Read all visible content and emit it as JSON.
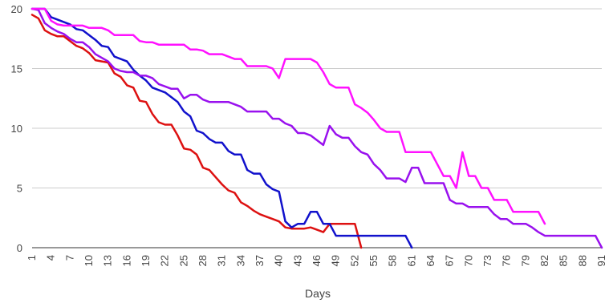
{
  "chart_data": {
    "type": "line",
    "title": "",
    "xlabel": "Days",
    "ylabel": "",
    "xlim": [
      1,
      91
    ],
    "ylim": [
      0,
      20
    ],
    "y_ticks": [
      "0",
      "5",
      "10",
      "15",
      "20"
    ],
    "x_ticks": [
      "1",
      "4",
      "7",
      "10",
      "13",
      "16",
      "19",
      "22",
      "25",
      "28",
      "31",
      "34",
      "37",
      "40",
      "43",
      "46",
      "49",
      "52",
      "55",
      "58",
      "61",
      "64",
      "67",
      "70",
      "73",
      "76",
      "79",
      "82",
      "85",
      "88",
      "91"
    ],
    "grid": true,
    "legend": "none",
    "series": [
      {
        "color": "#dd1111",
        "points": [
          [
            1,
            19.5
          ],
          [
            2,
            19.2
          ],
          [
            3,
            18.2
          ],
          [
            4,
            17.9
          ],
          [
            5,
            17.7
          ],
          [
            6,
            17.7
          ],
          [
            7,
            17.3
          ],
          [
            8,
            16.9
          ],
          [
            9,
            16.7
          ],
          [
            10,
            16.3
          ],
          [
            11,
            15.7
          ],
          [
            12,
            15.6
          ],
          [
            13,
            15.5
          ],
          [
            14,
            14.6
          ],
          [
            15,
            14.3
          ],
          [
            16,
            13.6
          ],
          [
            17,
            13.4
          ],
          [
            18,
            12.3
          ],
          [
            19,
            12.2
          ],
          [
            20,
            11.2
          ],
          [
            21,
            10.5
          ],
          [
            22,
            10.3
          ],
          [
            23,
            10.3
          ],
          [
            24,
            9.4
          ],
          [
            25,
            8.3
          ],
          [
            26,
            8.2
          ],
          [
            27,
            7.8
          ],
          [
            28,
            6.7
          ],
          [
            29,
            6.5
          ],
          [
            30,
            5.9
          ],
          [
            31,
            5.3
          ],
          [
            32,
            4.8
          ],
          [
            33,
            4.6
          ],
          [
            34,
            3.8
          ],
          [
            35,
            3.5
          ],
          [
            36,
            3.1
          ],
          [
            37,
            2.8
          ],
          [
            38,
            2.6
          ],
          [
            39,
            2.4
          ],
          [
            40,
            2.2
          ],
          [
            41,
            1.7
          ],
          [
            42,
            1.6
          ],
          [
            43,
            1.6
          ],
          [
            44,
            1.6
          ],
          [
            45,
            1.7
          ],
          [
            46,
            1.5
          ],
          [
            47,
            1.3
          ],
          [
            48,
            2.0
          ],
          [
            49,
            2.0
          ],
          [
            50,
            2.0
          ],
          [
            51,
            2.0
          ],
          [
            52,
            2.0
          ],
          [
            53,
            0
          ]
        ]
      },
      {
        "color": "#1111cc",
        "points": [
          [
            1,
            20
          ],
          [
            2,
            20
          ],
          [
            3,
            20
          ],
          [
            4,
            19.3
          ],
          [
            5,
            19.1
          ],
          [
            6,
            18.9
          ],
          [
            7,
            18.7
          ],
          [
            8,
            18.3
          ],
          [
            9,
            18.2
          ],
          [
            10,
            17.8
          ],
          [
            11,
            17.4
          ],
          [
            12,
            16.9
          ],
          [
            13,
            16.8
          ],
          [
            14,
            16.0
          ],
          [
            15,
            15.8
          ],
          [
            16,
            15.6
          ],
          [
            17,
            14.9
          ],
          [
            18,
            14.4
          ],
          [
            19,
            14.0
          ],
          [
            20,
            13.4
          ],
          [
            21,
            13.2
          ],
          [
            22,
            13.0
          ],
          [
            23,
            12.6
          ],
          [
            24,
            12.2
          ],
          [
            25,
            11.4
          ],
          [
            26,
            11.0
          ],
          [
            27,
            9.8
          ],
          [
            28,
            9.6
          ],
          [
            29,
            9.1
          ],
          [
            30,
            8.8
          ],
          [
            31,
            8.8
          ],
          [
            32,
            8.1
          ],
          [
            33,
            7.8
          ],
          [
            34,
            7.8
          ],
          [
            35,
            6.5
          ],
          [
            36,
            6.2
          ],
          [
            37,
            6.2
          ],
          [
            38,
            5.3
          ],
          [
            39,
            4.9
          ],
          [
            40,
            4.7
          ],
          [
            41,
            2.2
          ],
          [
            42,
            1.7
          ],
          [
            43,
            2.0
          ],
          [
            44,
            2.0
          ],
          [
            45,
            3.0
          ],
          [
            46,
            3.0
          ],
          [
            47,
            2.0
          ],
          [
            48,
            2.0
          ],
          [
            49,
            1.0
          ],
          [
            50,
            1.0
          ],
          [
            55,
            1.0
          ],
          [
            60,
            1.0
          ],
          [
            61,
            0
          ]
        ]
      },
      {
        "color": "#9911ee",
        "points": [
          [
            1,
            20
          ],
          [
            2,
            19.9
          ],
          [
            3,
            18.8
          ],
          [
            4,
            18.4
          ],
          [
            5,
            18.1
          ],
          [
            6,
            17.9
          ],
          [
            7,
            17.5
          ],
          [
            8,
            17.2
          ],
          [
            9,
            17.2
          ],
          [
            10,
            16.8
          ],
          [
            11,
            16.2
          ],
          [
            12,
            15.9
          ],
          [
            13,
            15.6
          ],
          [
            14,
            15.0
          ],
          [
            15,
            14.8
          ],
          [
            16,
            14.7
          ],
          [
            17,
            14.7
          ],
          [
            18,
            14.4
          ],
          [
            19,
            14.4
          ],
          [
            20,
            14.2
          ],
          [
            21,
            13.7
          ],
          [
            22,
            13.5
          ],
          [
            23,
            13.3
          ],
          [
            24,
            13.3
          ],
          [
            25,
            12.5
          ],
          [
            26,
            12.8
          ],
          [
            27,
            12.8
          ],
          [
            28,
            12.4
          ],
          [
            29,
            12.2
          ],
          [
            30,
            12.2
          ],
          [
            31,
            12.2
          ],
          [
            32,
            12.2
          ],
          [
            33,
            12.0
          ],
          [
            34,
            11.8
          ],
          [
            35,
            11.4
          ],
          [
            36,
            11.4
          ],
          [
            37,
            11.4
          ],
          [
            38,
            11.4
          ],
          [
            39,
            10.8
          ],
          [
            40,
            10.8
          ],
          [
            41,
            10.4
          ],
          [
            42,
            10.2
          ],
          [
            43,
            9.6
          ],
          [
            44,
            9.6
          ],
          [
            45,
            9.4
          ],
          [
            46,
            9.0
          ],
          [
            47,
            8.6
          ],
          [
            48,
            10.2
          ],
          [
            49,
            9.5
          ],
          [
            50,
            9.2
          ],
          [
            51,
            9.2
          ],
          [
            52,
            8.5
          ],
          [
            53,
            8.0
          ],
          [
            54,
            7.8
          ],
          [
            55,
            7.0
          ],
          [
            56,
            6.5
          ],
          [
            57,
            5.8
          ],
          [
            58,
            5.8
          ],
          [
            59,
            5.8
          ],
          [
            60,
            5.5
          ],
          [
            61,
            6.7
          ],
          [
            62,
            6.7
          ],
          [
            63,
            5.4
          ],
          [
            64,
            5.4
          ],
          [
            65,
            5.4
          ],
          [
            66,
            5.4
          ],
          [
            67,
            4.0
          ],
          [
            68,
            3.7
          ],
          [
            69,
            3.7
          ],
          [
            70,
            3.4
          ],
          [
            71,
            3.4
          ],
          [
            72,
            3.4
          ],
          [
            73,
            3.4
          ],
          [
            74,
            2.8
          ],
          [
            75,
            2.4
          ],
          [
            76,
            2.4
          ],
          [
            77,
            2.0
          ],
          [
            78,
            2.0
          ],
          [
            79,
            2.0
          ],
          [
            80,
            1.7
          ],
          [
            81,
            1.3
          ],
          [
            82,
            1.0
          ],
          [
            83,
            1.0
          ],
          [
            88,
            1.0
          ],
          [
            90,
            1.0
          ],
          [
            91,
            0
          ]
        ]
      },
      {
        "color": "#ff11ff",
        "points": [
          [
            1,
            20
          ],
          [
            3,
            20
          ],
          [
            4,
            19.0
          ],
          [
            5,
            18.7
          ],
          [
            6,
            18.6
          ],
          [
            7,
            18.6
          ],
          [
            8,
            18.6
          ],
          [
            9,
            18.6
          ],
          [
            10,
            18.4
          ],
          [
            11,
            18.4
          ],
          [
            12,
            18.4
          ],
          [
            13,
            18.2
          ],
          [
            14,
            17.8
          ],
          [
            15,
            17.8
          ],
          [
            16,
            17.8
          ],
          [
            17,
            17.8
          ],
          [
            18,
            17.3
          ],
          [
            19,
            17.2
          ],
          [
            20,
            17.2
          ],
          [
            21,
            17.0
          ],
          [
            22,
            17.0
          ],
          [
            23,
            17.0
          ],
          [
            24,
            17.0
          ],
          [
            25,
            17.0
          ],
          [
            26,
            16.6
          ],
          [
            27,
            16.6
          ],
          [
            28,
            16.5
          ],
          [
            29,
            16.2
          ],
          [
            30,
            16.2
          ],
          [
            31,
            16.2
          ],
          [
            32,
            16.0
          ],
          [
            33,
            15.8
          ],
          [
            34,
            15.8
          ],
          [
            35,
            15.2
          ],
          [
            36,
            15.2
          ],
          [
            37,
            15.2
          ],
          [
            38,
            15.2
          ],
          [
            39,
            15.0
          ],
          [
            40,
            14.2
          ],
          [
            41,
            15.8
          ],
          [
            42,
            15.8
          ],
          [
            43,
            15.8
          ],
          [
            44,
            15.8
          ],
          [
            45,
            15.8
          ],
          [
            46,
            15.5
          ],
          [
            47,
            14.7
          ],
          [
            48,
            13.7
          ],
          [
            49,
            13.4
          ],
          [
            50,
            13.4
          ],
          [
            51,
            13.4
          ],
          [
            52,
            12.0
          ],
          [
            53,
            11.7
          ],
          [
            54,
            11.3
          ],
          [
            55,
            10.7
          ],
          [
            56,
            10.0
          ],
          [
            57,
            9.7
          ],
          [
            58,
            9.7
          ],
          [
            59,
            9.7
          ],
          [
            60,
            8.0
          ],
          [
            61,
            8.0
          ],
          [
            62,
            8.0
          ],
          [
            63,
            8.0
          ],
          [
            64,
            8.0
          ],
          [
            65,
            7.0
          ],
          [
            66,
            6.0
          ],
          [
            67,
            6.0
          ],
          [
            68,
            5.0
          ],
          [
            69,
            8.0
          ],
          [
            70,
            6.0
          ],
          [
            71,
            6.0
          ],
          [
            72,
            5.0
          ],
          [
            73,
            5.0
          ],
          [
            74,
            4.0
          ],
          [
            75,
            4.0
          ],
          [
            76,
            4.0
          ],
          [
            77,
            3.0
          ],
          [
            78,
            3.0
          ],
          [
            79,
            3.0
          ],
          [
            80,
            3.0
          ],
          [
            81,
            3.0
          ],
          [
            82,
            2.0
          ]
        ]
      }
    ]
  }
}
